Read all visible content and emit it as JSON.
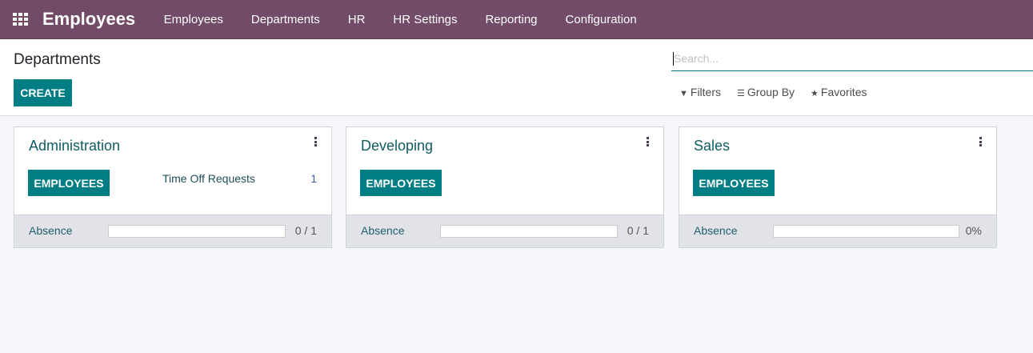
{
  "navbar": {
    "app_title": "Employees",
    "menu": [
      "Employees",
      "Departments",
      "HR",
      "HR Settings",
      "Reporting",
      "Configuration"
    ],
    "color": "#714b67"
  },
  "control_panel": {
    "title": "Departments",
    "create_label": "CREATE",
    "search_placeholder": "Search...",
    "filters_label": "Filters",
    "group_by_label": "Group By",
    "favorites_label": "Favorites"
  },
  "accent": "#017e84",
  "cards": [
    {
      "name": "Administration",
      "employees_label": "EMPLOYEES",
      "time_off_label": "Time Off Requests",
      "time_off_count": "1",
      "absence_label": "Absence",
      "absence_value": "0 / 1",
      "absence_fraction": 0
    },
    {
      "name": "Developing",
      "employees_label": "EMPLOYEES",
      "absence_label": "Absence",
      "absence_value": "0 / 1",
      "absence_fraction": 0
    },
    {
      "name": "Sales",
      "employees_label": "EMPLOYEES",
      "absence_label": "Absence",
      "absence_value": "0%",
      "absence_fraction": 0
    }
  ]
}
